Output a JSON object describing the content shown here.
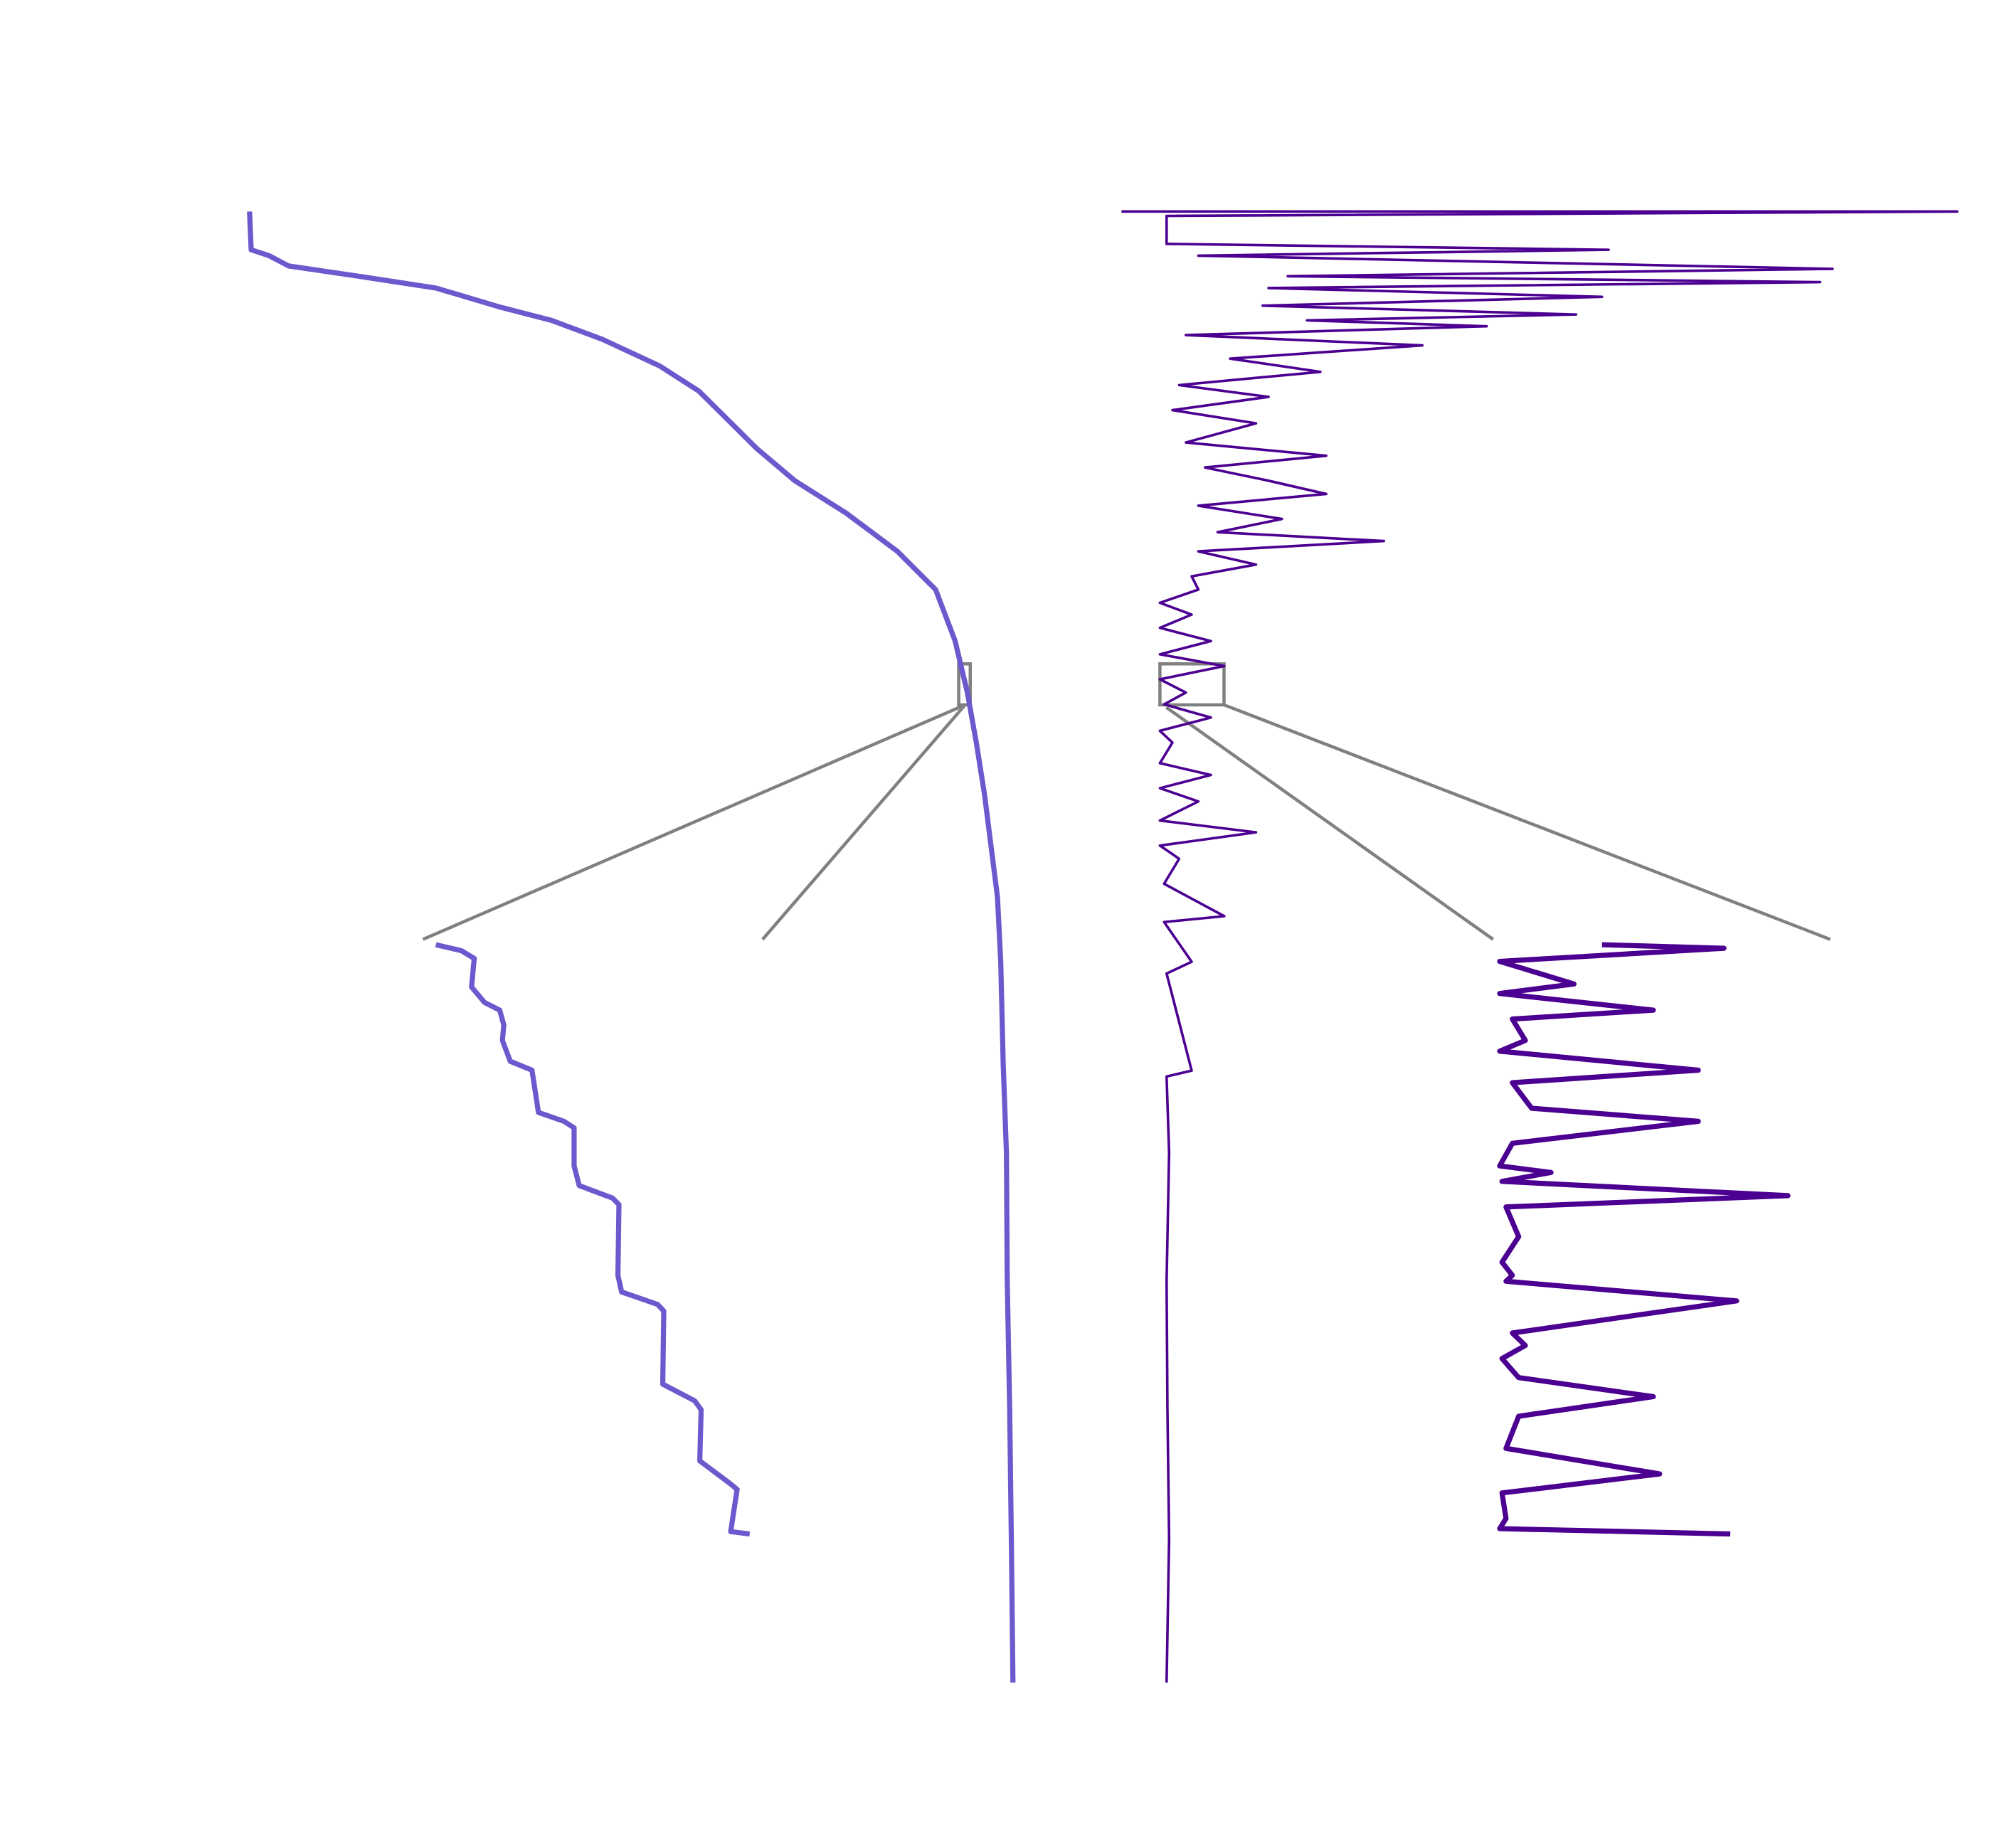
{
  "chart_data": [
    {
      "type": "line",
      "x": [
        0,
        2.6,
        3.0,
        3.7,
        4.4,
        5.2,
        6.5,
        7.4,
        8.7,
        10.5,
        12.2,
        13.9,
        16.1,
        18.3,
        20.5,
        23.1,
        25.7,
        29.2,
        32.7,
        36.1,
        39.6,
        43.1,
        46.6,
        51.0,
        57.9,
        64.0,
        72.7,
        81.4,
        90.2,
        100
      ],
      "xlim": [
        0,
        100
      ],
      "ylim": [
        0,
        100
      ],
      "series": [
        {
          "color": "#6a5acd",
          "values": [
            3.1,
            3.3,
            5.5,
            7.9,
            16.5,
            26.0,
            33.9,
            40.2,
            46.5,
            53.5,
            58.3,
            61.4,
            65.4,
            70.1,
            76.4,
            82.7,
            87.4,
            89.8,
            91.3,
            92.4,
            93.4,
            94.2,
            95.0,
            95.4,
            95.7,
            96.1,
            96.2,
            96.5,
            96.7,
            96.9
          ]
        }
      ]
    },
    {
      "type": "line",
      "x": [
        0,
        0,
        0.3,
        2.2,
        2.6,
        3.0,
        3.9,
        4.4,
        4.8,
        5.2,
        5.8,
        6.4,
        7.0,
        7.4,
        7.8,
        8.4,
        9.1,
        10.0,
        10.9,
        11.8,
        12.6,
        13.5,
        14.4,
        15.7,
        16.6,
        17.4,
        18.3,
        19.2,
        20.0,
        20.9,
        21.8,
        22.4,
        23.1,
        24.0,
        24.8,
        25.7,
        26.6,
        27.4,
        28.3,
        29.2,
        30.1,
        30.9,
        31.8,
        32.7,
        33.5,
        34.4,
        35.3,
        36.1,
        37.5,
        38.3,
        39.2,
        40.1,
        41.4,
        42.2,
        43.1,
        44.0,
        45.7,
        47.9,
        48.3,
        51.0,
        51.8,
        58.4,
        58.8,
        64.0,
        72.7,
        81.4,
        90.2,
        100
      ],
      "xlim": [
        0,
        100
      ],
      "ylim": [
        0,
        100
      ],
      "series": [
        {
          "color": "#4b0092",
          "values": [
            0,
            100,
            5.4,
            5.4,
            58.3,
            9.2,
            85.1,
            19.9,
            83.6,
            17.6,
            57.5,
            16.9,
            54.4,
            22.2,
            43.7,
            7.7,
            36.0,
            13.0,
            23.8,
            6.9,
            17.6,
            6.1,
            16.1,
            7.7,
            24.5,
            10.0,
            17.6,
            24.5,
            9.2,
            19.2,
            11.5,
            31.4,
            9.2,
            16.1,
            8.4,
            9.2,
            4.6,
            8.4,
            4.6,
            10.7,
            4.6,
            12.3,
            4.6,
            7.7,
            5.1,
            10.7,
            4.6,
            6.1,
            4.6,
            10.7,
            4.6,
            9.2,
            4.6,
            16.1,
            4.6,
            6.9,
            5.1,
            12.3,
            5.1,
            8.4,
            5.4,
            8.4,
            5.4,
            5.7,
            5.4,
            5.5,
            5.7,
            5.4
          ]
        }
      ]
    },
    {
      "type": "line",
      "x": [
        0.9,
        1.9,
        3.2,
        8.0,
        10.6,
        11.9,
        14.4,
        17.0,
        20.5,
        22.0,
        29.1,
        30.6,
        31.7,
        38.1,
        41.4,
        43.5,
        44.6,
        56.5,
        59.3,
        61.4,
        62.5,
        74.8,
        77.6,
        79.1,
        87.7,
        91.6,
        92.5,
        99.6,
        100
      ],
      "xlim": [
        0,
        100
      ],
      "ylim": [
        0,
        100
      ],
      "series": [
        {
          "color": "#6a5acd",
          "values": [
            3.8,
            11.3,
            15.1,
            14.3,
            18.1,
            22.6,
            23.8,
            23.4,
            25.7,
            32.1,
            34.0,
            41.5,
            44.5,
            44.5,
            46.0,
            55.8,
            57.7,
            57.4,
            58.5,
            69.1,
            70.9,
            70.6,
            80.0,
            81.9,
            81.5,
            90.6,
            92.5,
            90.6,
            96.2
          ]
        }
      ]
    },
    {
      "type": "line",
      "x": [
        0.9,
        1.5,
        3.7,
        7.5,
        9.1,
        11.9,
        13.4,
        17.0,
        18.8,
        22.0,
        24.1,
        28.4,
        30.6,
        34.3,
        38.1,
        39.2,
        40.7,
        43.1,
        45.0,
        50.0,
        54.3,
        56.5,
        57.5,
        60.8,
        66.2,
        68.3,
        70.5,
        73.7,
        76.9,
        80.2,
        85.6,
        89.9,
        93.1,
        97.4,
        99.1,
        100
      ],
      "xlim": [
        0,
        100
      ],
      "ylim": [
        0,
        100
      ],
      "series": [
        {
          "color": "#4b0092",
          "values": [
            31.5,
            68.1,
            0.8,
            23.1,
            0.8,
            46.9,
            4.6,
            8.5,
            0.8,
            60.4,
            4.6,
            10.4,
            60.4,
            4.6,
            0.8,
            16.2,
            1.5,
            87.3,
            2.7,
            6.5,
            1.5,
            4.6,
            2.7,
            71.9,
            4.6,
            8.5,
            1.5,
            6.5,
            46.9,
            6.5,
            2.7,
            48.8,
            1.5,
            2.7,
            0.8,
            70.0
          ]
        }
      ]
    }
  ]
}
